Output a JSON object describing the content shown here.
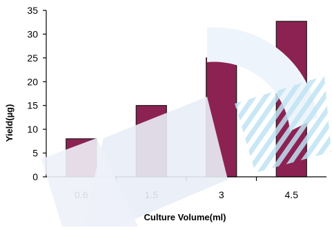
{
  "chart_data": {
    "type": "bar",
    "categories": [
      "0.6",
      "1.5",
      "3",
      "4.5"
    ],
    "values": [
      8,
      15,
      25,
      32.7
    ],
    "title": "",
    "xlabel": "Culture Volume(ml)",
    "ylabel": "Yield(µg)",
    "ylim": [
      0,
      35
    ],
    "yticks": [
      0,
      5,
      10,
      15,
      20,
      25,
      30,
      35
    ],
    "grid": false,
    "legend": "none",
    "bar_color": "#8b2252",
    "bar_edge_color": "#1a1a1a"
  }
}
